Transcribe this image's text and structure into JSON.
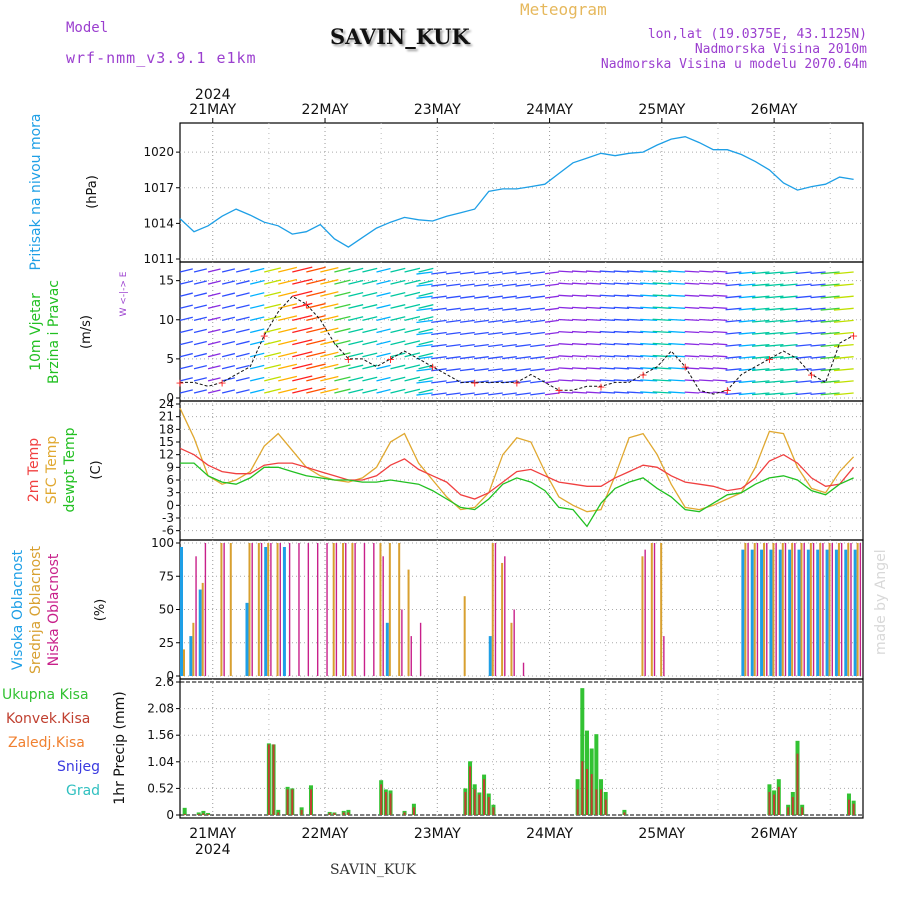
{
  "header": {
    "model_label": "Model",
    "model_value": "wrf-nmm_v3.9.1 e1km",
    "station": "SAVIN_KUK",
    "chart_kind": "Meteogram",
    "lonlat": "lon,lat (19.0375E, 43.1125N)",
    "altitude": "Nadmorska Visina 2010m",
    "altitude_model": "Nadmorska Visina u modelu 2070.64m"
  },
  "footer": {
    "station": "SAVIN_KUK",
    "watermark": "made by Angel"
  },
  "time_axis": {
    "year": "2024",
    "days": [
      "21MAY",
      "22MAY",
      "23MAY",
      "24MAY",
      "25MAY",
      "26MAY"
    ]
  },
  "colors": {
    "pressure": "#1e9fe6",
    "temp2m": "#f04040",
    "sfc": "#e0a830",
    "dew": "#22c022",
    "high_cloud": "#1e9fe6",
    "mid_cloud": "#d8a030",
    "low_cloud": "#c8208a",
    "total_precip": "#33c233",
    "conv_precip": "#c04030",
    "snow": "#3a3ae0",
    "grad": "#30c0c0",
    "wind_purple": "#8a2be2"
  },
  "chart_data": [
    {
      "type": "line",
      "panel": "pressure",
      "ylabel_lines": [
        "Pritisak na nivou mora",
        "(hPa)"
      ],
      "yticks": [
        1011,
        1014,
        1017,
        1020
      ],
      "ylim": [
        1011,
        1022.2
      ],
      "grid": true,
      "x_hours": [
        0,
        3,
        6,
        9,
        12,
        15,
        18,
        21,
        24,
        27,
        30,
        33,
        36,
        39,
        42,
        45,
        48,
        51,
        54,
        57,
        60,
        63,
        66,
        69,
        72,
        75,
        78,
        81,
        84,
        87,
        90,
        93,
        96,
        99,
        102,
        105,
        108,
        111,
        114,
        117,
        120,
        123,
        126,
        129,
        132,
        135,
        138,
        141,
        144
      ],
      "series": [
        {
          "values": [
            1014.4,
            1013.3,
            1013.8,
            1014.6,
            1015.2,
            1014.7,
            1014.1,
            1013.8,
            1013.1,
            1013.3,
            1013.9,
            1012.7,
            1012.0,
            1012.8,
            1013.6,
            1014.1,
            1014.5,
            1014.3,
            1014.2,
            1014.6,
            1014.9,
            1015.2,
            1016.7,
            1016.9,
            1016.9,
            1017.1,
            1017.3,
            1018.2,
            1019.1,
            1019.5,
            1019.9,
            1019.7,
            1019.9,
            1020.0,
            1020.6,
            1021.1,
            1021.3,
            1020.8,
            1020.2,
            1020.2,
            1019.8,
            1019.2,
            1018.5,
            1017.4,
            1016.8,
            1017.1,
            1017.3,
            1017.9,
            1017.7
          ]
        }
      ]
    },
    {
      "type": "line",
      "panel": "wind",
      "ylabel_lines": [
        "10m Vjetar",
        "Brzina i Pravac",
        "(m/s)"
      ],
      "yticks": [
        0,
        5,
        10,
        15
      ],
      "ylim": [
        0,
        17
      ],
      "grid": true,
      "x_hours": [
        0,
        3,
        6,
        9,
        12,
        15,
        18,
        21,
        24,
        27,
        30,
        33,
        36,
        39,
        42,
        45,
        48,
        51,
        54,
        57,
        60,
        63,
        66,
        69,
        72,
        75,
        78,
        81,
        84,
        87,
        90,
        93,
        96,
        99,
        102,
        105,
        108,
        111,
        114,
        117,
        120,
        123,
        126,
        129,
        132,
        135,
        138,
        141,
        144
      ],
      "series": [
        {
          "name": "speed",
          "values": [
            2,
            2,
            1.5,
            2,
            3,
            4,
            8,
            11,
            13,
            12,
            10,
            7,
            5,
            5,
            4,
            5,
            6,
            5,
            4,
            3,
            2,
            2,
            2,
            2,
            2,
            3,
            2,
            1,
            1,
            1.5,
            1.5,
            2,
            2,
            3,
            4,
            6,
            4,
            1,
            0.5,
            1,
            3,
            4,
            5,
            6,
            5,
            3,
            2,
            7,
            8
          ]
        }
      ]
    },
    {
      "type": "line",
      "panel": "temperature",
      "ylabel_lines": [
        "2m Temp",
        "SFC Temp",
        "dewpt Temp",
        "(C)"
      ],
      "yticks": [
        -6,
        -3,
        0,
        3,
        6,
        9,
        12,
        15,
        18,
        21,
        24
      ],
      "ylim": [
        -7.5,
        24
      ],
      "grid": true,
      "x_hours": [
        0,
        3,
        6,
        9,
        12,
        15,
        18,
        21,
        24,
        27,
        30,
        33,
        36,
        39,
        42,
        45,
        48,
        51,
        54,
        57,
        60,
        63,
        66,
        69,
        72,
        75,
        78,
        81,
        84,
        87,
        90,
        93,
        96,
        99,
        102,
        105,
        108,
        111,
        114,
        117,
        120,
        123,
        126,
        129,
        132,
        135,
        138,
        141,
        144
      ],
      "series": [
        {
          "name": "2m Temp",
          "values": [
            13.5,
            12,
            9.5,
            8,
            7.5,
            7.5,
            9.5,
            10,
            10,
            9,
            8,
            7,
            6,
            6,
            7,
            9.5,
            11,
            8.5,
            7,
            5.5,
            2.5,
            1.5,
            3,
            5.5,
            8,
            8.5,
            7,
            5.5,
            5,
            4.5,
            4.5,
            6.5,
            8,
            9.5,
            9,
            7,
            5.5,
            5,
            4.5,
            3.5,
            4,
            6.5,
            10.5,
            12,
            10,
            6.5,
            4.5,
            5,
            9
          ]
        },
        {
          "name": "SFC Temp",
          "values": [
            23,
            16,
            7,
            5,
            6,
            8,
            14,
            17,
            13,
            9,
            7,
            6,
            5.5,
            6.5,
            9,
            15,
            17,
            10,
            6,
            2,
            -1,
            -0.5,
            3,
            12,
            16,
            15,
            8,
            2,
            0,
            -1.5,
            -1,
            7,
            16,
            17,
            12,
            5,
            -0.5,
            -1,
            0,
            1.5,
            3,
            9,
            17.5,
            17,
            9,
            4,
            3,
            8,
            11.5
          ]
        },
        {
          "name": "dewpt Temp",
          "values": [
            10,
            10,
            7,
            5.5,
            5,
            6.5,
            9,
            9,
            8,
            7,
            6.5,
            6,
            6,
            5.5,
            5.5,
            6,
            5.5,
            5,
            3.5,
            1.5,
            -0.5,
            -1,
            1.5,
            5,
            6.5,
            5.5,
            3.5,
            -0.5,
            -1,
            -5,
            0.5,
            4,
            5.5,
            6.5,
            4,
            2,
            -1,
            -1.5,
            0.5,
            2.5,
            3,
            5,
            6.5,
            7,
            6,
            3.5,
            2.5,
            5,
            6.5
          ]
        }
      ]
    },
    {
      "type": "bar",
      "panel": "cloud",
      "ylabel_lines": [
        "Visoka Oblacnost",
        "Srednja Oblacnost",
        "Niska Oblacnost",
        "(%)"
      ],
      "yticks": [
        0,
        25,
        50,
        75,
        100
      ],
      "ylim": [
        0,
        100
      ],
      "grid": true,
      "x_hours": [
        0,
        2,
        4,
        6,
        8,
        10,
        12,
        14,
        16,
        18,
        20,
        22,
        24,
        26,
        28,
        30,
        32,
        34,
        36,
        38,
        40,
        42,
        44,
        46,
        48,
        50,
        52,
        54,
        56,
        58,
        60,
        62,
        64,
        66,
        68,
        70,
        72,
        74,
        76,
        78,
        80,
        82,
        84,
        86,
        88,
        90,
        92,
        94,
        96,
        98,
        100,
        102,
        104,
        106,
        108,
        110,
        112,
        114,
        116,
        118,
        120,
        122,
        124,
        126,
        128,
        130,
        132,
        134,
        136,
        138,
        140,
        142,
        144
      ],
      "series": [
        {
          "name": "Visoka Oblacnost",
          "values": [
            97,
            30,
            65,
            0,
            0,
            0,
            0,
            55,
            0,
            97,
            0,
            97,
            0,
            0,
            0,
            0,
            0,
            0,
            0,
            0,
            0,
            0,
            40,
            0,
            0,
            0,
            0,
            0,
            0,
            0,
            0,
            0,
            0,
            30,
            0,
            0,
            0,
            0,
            0,
            0,
            0,
            0,
            0,
            0,
            0,
            0,
            0,
            0,
            0,
            0,
            0,
            0,
            0,
            0,
            0,
            0,
            0,
            0,
            0,
            0,
            95,
            95,
            95,
            95,
            95,
            95,
            95,
            95,
            95,
            95,
            95,
            95,
            95
          ]
        },
        {
          "name": "Srednja Oblacnost",
          "values": [
            20,
            40,
            70,
            0,
            100,
            100,
            0,
            100,
            100,
            100,
            100,
            0,
            0,
            0,
            0,
            0,
            100,
            100,
            100,
            0,
            0,
            100,
            100,
            100,
            80,
            0,
            0,
            0,
            0,
            0,
            60,
            0,
            0,
            100,
            85,
            40,
            0,
            0,
            0,
            0,
            0,
            0,
            0,
            0,
            0,
            0,
            0,
            0,
            0,
            90,
            100,
            100,
            0,
            0,
            0,
            0,
            0,
            0,
            0,
            0,
            100,
            100,
            100,
            100,
            100,
            100,
            100,
            100,
            100,
            100,
            100,
            100,
            100
          ]
        },
        {
          "name": "Niska Oblacnost",
          "values": [
            0,
            90,
            100,
            0,
            100,
            0,
            0,
            100,
            100,
            100,
            100,
            100,
            100,
            100,
            100,
            100,
            100,
            100,
            100,
            100,
            100,
            90,
            0,
            50,
            30,
            40,
            0,
            0,
            0,
            0,
            0,
            0,
            0,
            100,
            90,
            50,
            10,
            0,
            0,
            0,
            0,
            0,
            0,
            0,
            0,
            0,
            0,
            0,
            0,
            95,
            100,
            30,
            0,
            0,
            0,
            0,
            0,
            0,
            0,
            0,
            100,
            100,
            100,
            100,
            100,
            100,
            100,
            100,
            100,
            100,
            100,
            100,
            100
          ]
        }
      ]
    },
    {
      "type": "bar",
      "panel": "precip",
      "ylabel_lines": [
        "1hr Precip (mm)"
      ],
      "legend": [
        "Ukupna Kisa",
        "Konvek.Kisa",
        "Zaledj.Kisa",
        "Snijeg",
        "Grad"
      ],
      "yticks": [
        0,
        0.52,
        1.04,
        1.56,
        2.08,
        2.6
      ],
      "ylim": [
        0,
        2.6
      ],
      "grid": true,
      "x_hours": [
        1,
        4,
        5,
        6,
        19,
        20,
        21,
        23,
        24,
        26,
        28,
        32,
        33,
        35,
        36,
        43,
        44,
        45,
        48,
        50,
        61,
        62,
        63,
        64,
        65,
        66,
        67,
        85,
        86,
        87,
        88,
        89,
        90,
        91,
        95,
        126,
        127,
        128,
        130,
        131,
        132,
        133,
        143,
        144
      ],
      "series": [
        {
          "name": "Ukupna Kisa",
          "values": [
            0.14,
            0.05,
            0.08,
            0.04,
            1.4,
            1.38,
            0.1,
            0.55,
            0.52,
            0.15,
            0.58,
            0.06,
            0.05,
            0.08,
            0.1,
            0.68,
            0.5,
            0.48,
            0.08,
            0.22,
            0.52,
            1.05,
            0.6,
            0.44,
            0.79,
            0.42,
            0.2,
            0.7,
            2.48,
            1.65,
            1.3,
            1.58,
            0.7,
            0.45,
            0.1,
            0.6,
            0.48,
            0.7,
            0.2,
            0.45,
            1.45,
            0.2,
            0.42,
            0.28
          ]
        },
        {
          "name": "Konvek.Kisa",
          "values": [
            0.02,
            0.02,
            0.03,
            0.02,
            1.38,
            1.38,
            0.05,
            0.5,
            0.5,
            0.1,
            0.5,
            0.04,
            0.04,
            0.05,
            0.05,
            0.6,
            0.45,
            0.42,
            0.05,
            0.15,
            0.45,
            0.95,
            0.5,
            0.4,
            0.7,
            0.35,
            0.15,
            0.5,
            1.05,
            0.9,
            0.8,
            0.5,
            0.5,
            0.3,
            0.05,
            0.45,
            0.4,
            0.55,
            0.15,
            0.35,
            1.2,
            0.15,
            0.3,
            0.22
          ]
        }
      ]
    }
  ]
}
